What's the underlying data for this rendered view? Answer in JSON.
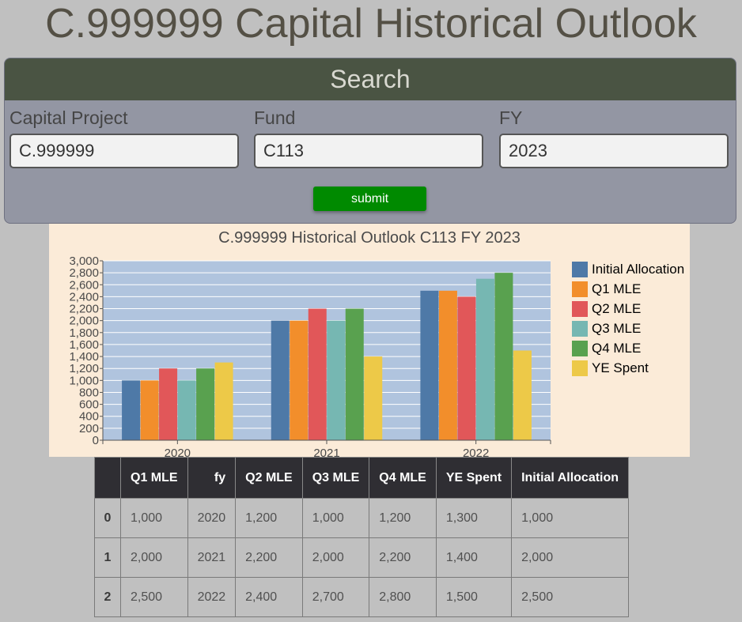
{
  "page": {
    "title": "C.999999 Capital Historical Outlook"
  },
  "search": {
    "header": "Search",
    "fields": [
      {
        "label": "Capital Project",
        "value": "C.999999"
      },
      {
        "label": "Fund",
        "value": "C113"
      },
      {
        "label": "FY",
        "value": "2023"
      }
    ],
    "submit_label": "submit"
  },
  "chart_data": {
    "type": "bar",
    "title": "C.999999 Historical Outlook C113 FY 2023",
    "categories": [
      "2020",
      "2021",
      "2022"
    ],
    "ylim": [
      0,
      3000
    ],
    "yticks": [
      0,
      200,
      400,
      600,
      800,
      1000,
      1200,
      1400,
      1600,
      1800,
      2000,
      2200,
      2400,
      2600,
      2800,
      3000
    ],
    "yticks_labels": [
      "0",
      "200",
      "400",
      "600",
      "800",
      "1,000",
      "1,200",
      "1,400",
      "1,600",
      "1,800",
      "2,000",
      "2,200",
      "2,400",
      "2,600",
      "2,800",
      "3,000"
    ],
    "grid": true,
    "legend": "right",
    "series": [
      {
        "name": "Initial Allocation",
        "color": "#4e79a7",
        "values": [
          1000,
          2000,
          2500
        ]
      },
      {
        "name": "Q1 MLE",
        "color": "#f28e2b",
        "values": [
          1000,
          2000,
          2500
        ]
      },
      {
        "name": "Q2 MLE",
        "color": "#e15759",
        "values": [
          1200,
          2200,
          2400
        ]
      },
      {
        "name": "Q3 MLE",
        "color": "#76b7b2",
        "values": [
          1000,
          2000,
          2700
        ]
      },
      {
        "name": "Q4 MLE",
        "color": "#59a14f",
        "values": [
          1200,
          2200,
          2800
        ]
      },
      {
        "name": "YE Spent",
        "color": "#edc948",
        "values": [
          1300,
          1400,
          1500
        ]
      }
    ],
    "plot_background": "#b0c4de"
  },
  "table": {
    "columns": [
      "",
      "Q1 MLE",
      "fy",
      "Q2 MLE",
      "Q3 MLE",
      "Q4 MLE",
      "YE Spent",
      "Initial Allocation"
    ],
    "rows": [
      [
        "0",
        "1,000",
        "2020",
        "1,200",
        "1,000",
        "1,200",
        "1,300",
        "1,000"
      ],
      [
        "1",
        "2,000",
        "2021",
        "2,200",
        "2,000",
        "2,200",
        "1,400",
        "2,000"
      ],
      [
        "2",
        "2,500",
        "2022",
        "2,400",
        "2,700",
        "2,800",
        "1,500",
        "2,500"
      ]
    ]
  }
}
